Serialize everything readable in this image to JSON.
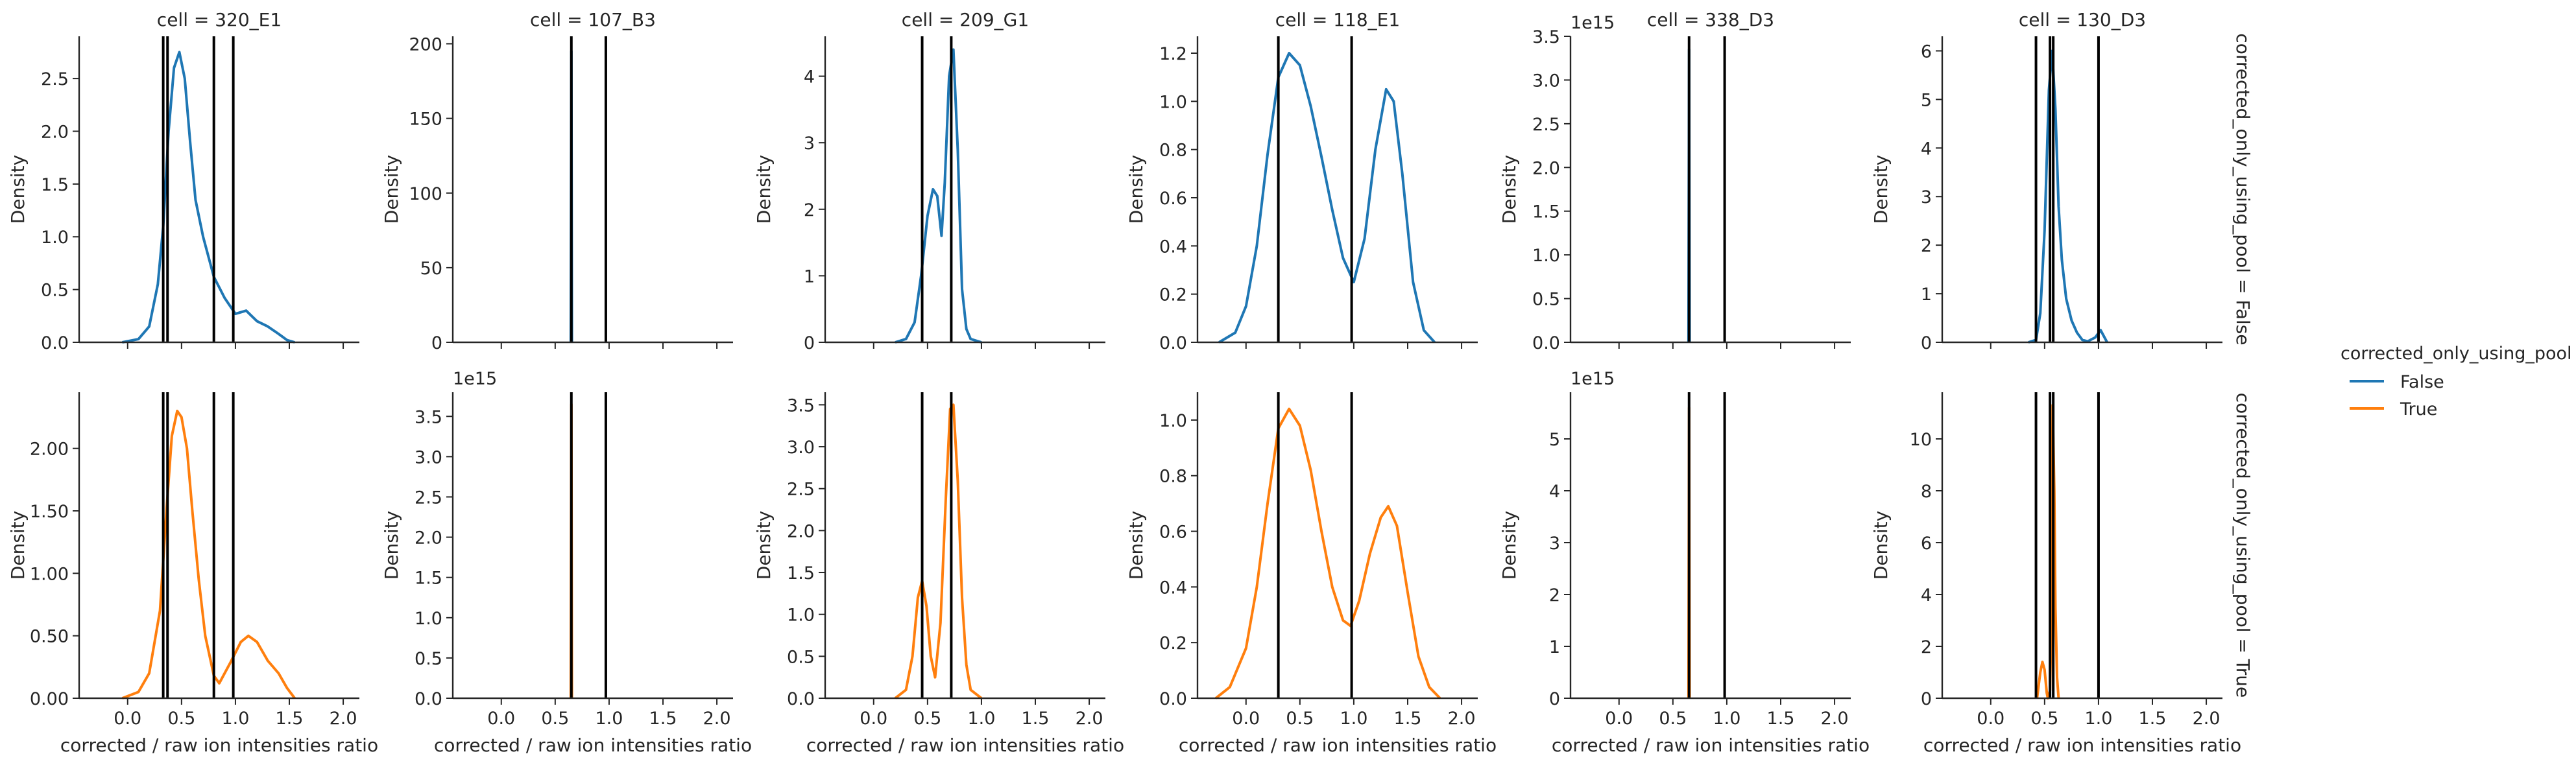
{
  "chart_data": {
    "type": "line",
    "row_facet_label": "corrected_only_using_pool",
    "col_facet_label": "cell",
    "xlabel": "corrected / raw ion intensities ratio",
    "ylabel": "Density",
    "x_ticks": [
      0.0,
      0.5,
      1.0,
      1.5,
      2.0
    ],
    "x_tick_labels": [
      "0.0",
      "0.5",
      "1.0",
      "1.5",
      "2.0"
    ],
    "xlim": [
      -0.45,
      2.15
    ],
    "columns": [
      "cell = 320_E1",
      "cell = 107_B3",
      "cell = 209_G1",
      "cell = 118_E1",
      "cell = 338_D3",
      "cell = 130_D3"
    ],
    "rows": [
      "corrected_only_using_pool = False",
      "corrected_only_using_pool = True"
    ],
    "legend": {
      "title": "corrected_only_using_pool",
      "position": "right",
      "entries": [
        {
          "label": "False",
          "color": "#1f77b4"
        },
        {
          "label": "True",
          "color": "#ff7f0e"
        }
      ]
    },
    "panels": [
      {
        "row": 0,
        "col": 0,
        "series": "False",
        "ylim": [
          0,
          2.9
        ],
        "yticks": [
          0,
          0.5,
          1.0,
          1.5,
          2.0,
          2.5
        ],
        "ytick_labels": [
          "0.0",
          "0.5",
          "1.0",
          "1.5",
          "2.0",
          "2.5"
        ],
        "offset_label": "",
        "vlines": [
          0.33,
          0.37,
          0.8,
          0.98
        ],
        "curve": {
          "x": [
            -0.05,
            0.1,
            0.2,
            0.28,
            0.33,
            0.38,
            0.43,
            0.48,
            0.53,
            0.58,
            0.63,
            0.7,
            0.8,
            0.9,
            1.0,
            1.1,
            1.2,
            1.3,
            1.4,
            1.48,
            1.55
          ],
          "y": [
            0,
            0.03,
            0.15,
            0.55,
            1.1,
            2.0,
            2.6,
            2.75,
            2.5,
            1.9,
            1.35,
            1.0,
            0.62,
            0.42,
            0.27,
            0.3,
            0.2,
            0.15,
            0.08,
            0.02,
            0
          ]
        }
      },
      {
        "row": 0,
        "col": 1,
        "series": "False",
        "ylim": [
          0,
          205
        ],
        "yticks": [
          0,
          50,
          100,
          150,
          200
        ],
        "ytick_labels": [
          "0",
          "50",
          "100",
          "150",
          "200"
        ],
        "offset_label": "",
        "vlines": [
          0.65,
          0.97
        ],
        "curve": {
          "x": [
            0.645,
            0.65,
            0.655
          ],
          "y": [
            0,
            195,
            0
          ]
        }
      },
      {
        "row": 0,
        "col": 2,
        "series": "False",
        "ylim": [
          0,
          4.6
        ],
        "yticks": [
          0,
          1,
          2,
          3,
          4
        ],
        "ytick_labels": [
          "0",
          "1",
          "2",
          "3",
          "4"
        ],
        "offset_label": "",
        "vlines": [
          0.45,
          0.72
        ],
        "curve": {
          "x": [
            0.2,
            0.3,
            0.38,
            0.44,
            0.5,
            0.55,
            0.59,
            0.63,
            0.66,
            0.7,
            0.74,
            0.78,
            0.82,
            0.86,
            0.9,
            1.0
          ],
          "y": [
            0,
            0.05,
            0.3,
            1.0,
            1.9,
            2.3,
            2.2,
            1.6,
            2.4,
            4.0,
            4.4,
            2.9,
            0.8,
            0.2,
            0.05,
            0
          ]
        }
      },
      {
        "row": 0,
        "col": 3,
        "series": "False",
        "ylim": [
          0,
          1.27
        ],
        "yticks": [
          0,
          0.2,
          0.4,
          0.6,
          0.8,
          1.0,
          1.2
        ],
        "ytick_labels": [
          "0.0",
          "0.2",
          "0.4",
          "0.6",
          "0.8",
          "1.0",
          "1.2"
        ],
        "offset_label": "",
        "vlines": [
          0.3,
          0.98
        ],
        "curve": {
          "x": [
            -0.25,
            -0.1,
            0.0,
            0.1,
            0.2,
            0.3,
            0.4,
            0.5,
            0.6,
            0.7,
            0.8,
            0.9,
            1.0,
            1.1,
            1.2,
            1.3,
            1.37,
            1.45,
            1.55,
            1.65,
            1.75
          ],
          "y": [
            0,
            0.04,
            0.15,
            0.4,
            0.78,
            1.1,
            1.2,
            1.15,
            0.98,
            0.77,
            0.55,
            0.35,
            0.25,
            0.43,
            0.8,
            1.05,
            1.0,
            0.7,
            0.25,
            0.05,
            0
          ]
        }
      },
      {
        "row": 0,
        "col": 4,
        "series": "False",
        "ylim": [
          0,
          3.5
        ],
        "yticks": [
          0,
          0.5,
          1.0,
          1.5,
          2.0,
          2.5,
          3.0,
          3.5
        ],
        "ytick_labels": [
          "0.0",
          "0.5",
          "1.0",
          "1.5",
          "2.0",
          "2.5",
          "3.0",
          "3.5"
        ],
        "offset_label": "1e15",
        "vlines": [
          0.65,
          0.98
        ],
        "curve": {
          "x": [
            0.645,
            0.65,
            0.655
          ],
          "y": [
            0,
            3.35,
            0
          ]
        }
      },
      {
        "row": 0,
        "col": 5,
        "series": "False",
        "ylim": [
          0,
          6.3
        ],
        "yticks": [
          0,
          1,
          2,
          3,
          4,
          5,
          6
        ],
        "ytick_labels": [
          "0",
          "1",
          "2",
          "3",
          "4",
          "5",
          "6"
        ],
        "offset_label": "",
        "vlines": [
          0.42,
          0.55,
          0.58,
          1.0
        ],
        "curve": {
          "x": [
            0.35,
            0.42,
            0.46,
            0.5,
            0.54,
            0.57,
            0.6,
            0.63,
            0.66,
            0.7,
            0.75,
            0.8,
            0.85,
            0.9,
            0.97,
            1.02,
            1.08
          ],
          "y": [
            0,
            0.05,
            0.6,
            2.3,
            5.2,
            6.0,
            4.8,
            2.8,
            1.7,
            0.9,
            0.45,
            0.2,
            0.05,
            0.02,
            0.1,
            0.25,
            0
          ]
        }
      },
      {
        "row": 1,
        "col": 0,
        "series": "True",
        "ylim": [
          0,
          2.45
        ],
        "yticks": [
          0,
          0.5,
          1.0,
          1.5,
          2.0
        ],
        "ytick_labels": [
          "0.00",
          "0.50",
          "1.00",
          "1.50",
          "2.00"
        ],
        "offset_label": "",
        "vlines": [
          0.33,
          0.37,
          0.8,
          0.98
        ],
        "curve": {
          "x": [
            -0.05,
            0.1,
            0.2,
            0.3,
            0.36,
            0.41,
            0.46,
            0.5,
            0.55,
            0.6,
            0.66,
            0.72,
            0.8,
            0.85,
            0.95,
            1.05,
            1.12,
            1.2,
            1.3,
            1.4,
            1.48,
            1.55
          ],
          "y": [
            0,
            0.05,
            0.2,
            0.7,
            1.5,
            2.1,
            2.3,
            2.25,
            2.0,
            1.5,
            0.95,
            0.5,
            0.18,
            0.12,
            0.28,
            0.45,
            0.5,
            0.45,
            0.3,
            0.2,
            0.08,
            0
          ]
        }
      },
      {
        "row": 1,
        "col": 1,
        "series": "True",
        "ylim": [
          0,
          3.8
        ],
        "yticks": [
          0,
          0.5,
          1.0,
          1.5,
          2.0,
          2.5,
          3.0,
          3.5
        ],
        "ytick_labels": [
          "0.0",
          "0.5",
          "1.0",
          "1.5",
          "2.0",
          "2.5",
          "3.0",
          "3.5"
        ],
        "offset_label": "1e15",
        "vlines": [
          0.65,
          0.97
        ],
        "curve": {
          "x": [
            0.645,
            0.65,
            0.655
          ],
          "y": [
            0,
            3.65,
            0
          ]
        }
      },
      {
        "row": 1,
        "col": 2,
        "series": "True",
        "ylim": [
          0,
          3.65
        ],
        "yticks": [
          0,
          0.5,
          1.0,
          1.5,
          2.0,
          2.5,
          3.0,
          3.5
        ],
        "ytick_labels": [
          "0.0",
          "0.5",
          "1.0",
          "1.5",
          "2.0",
          "2.5",
          "3.0",
          "3.5"
        ],
        "offset_label": "",
        "vlines": [
          0.45,
          0.72
        ],
        "curve": {
          "x": [
            0.2,
            0.3,
            0.36,
            0.41,
            0.45,
            0.49,
            0.53,
            0.57,
            0.62,
            0.67,
            0.71,
            0.74,
            0.78,
            0.82,
            0.86,
            0.9,
            1.0
          ],
          "y": [
            0,
            0.1,
            0.5,
            1.2,
            1.4,
            1.1,
            0.5,
            0.25,
            0.9,
            2.4,
            3.45,
            3.5,
            2.6,
            1.2,
            0.4,
            0.1,
            0
          ]
        }
      },
      {
        "row": 1,
        "col": 3,
        "series": "True",
        "ylim": [
          0,
          1.1
        ],
        "yticks": [
          0,
          0.2,
          0.4,
          0.6,
          0.8,
          1.0
        ],
        "ytick_labels": [
          "0.0",
          "0.2",
          "0.4",
          "0.6",
          "0.8",
          "1.0"
        ],
        "offset_label": "",
        "vlines": [
          0.3,
          0.98
        ],
        "curve": {
          "x": [
            -0.28,
            -0.15,
            0.0,
            0.1,
            0.2,
            0.3,
            0.4,
            0.5,
            0.6,
            0.7,
            0.8,
            0.9,
            0.97,
            1.05,
            1.15,
            1.25,
            1.32,
            1.4,
            1.5,
            1.6,
            1.7,
            1.8
          ],
          "y": [
            0,
            0.04,
            0.18,
            0.4,
            0.7,
            0.97,
            1.04,
            0.98,
            0.82,
            0.6,
            0.4,
            0.28,
            0.26,
            0.35,
            0.52,
            0.65,
            0.69,
            0.62,
            0.38,
            0.15,
            0.04,
            0
          ]
        }
      },
      {
        "row": 1,
        "col": 4,
        "series": "True",
        "ylim": [
          0,
          5.9
        ],
        "yticks": [
          0,
          1,
          2,
          3,
          4,
          5
        ],
        "ytick_labels": [
          "0",
          "1",
          "2",
          "3",
          "4",
          "5"
        ],
        "offset_label": "1e15",
        "vlines": [
          0.65,
          0.98
        ],
        "curve": {
          "x": [
            0.645,
            0.65,
            0.655
          ],
          "y": [
            0,
            5.6,
            0
          ]
        }
      },
      {
        "row": 1,
        "col": 5,
        "series": "True",
        "ylim": [
          0,
          11.8
        ],
        "yticks": [
          0,
          2,
          4,
          6,
          8,
          10
        ],
        "ytick_labels": [
          "0",
          "2",
          "4",
          "6",
          "8",
          "10"
        ],
        "offset_label": "",
        "vlines": [
          0.42,
          0.55,
          0.58,
          1.0
        ],
        "curve": {
          "x": [
            0.43,
            0.46,
            0.48,
            0.5,
            0.52,
            0.53,
            0.55,
            0.56,
            0.575,
            0.59,
            0.6,
            0.615,
            0.63
          ],
          "y": [
            0,
            1.0,
            1.4,
            1.1,
            0.2,
            0,
            0.3,
            2.5,
            11.3,
            8.0,
            3.5,
            0.8,
            0
          ]
        }
      }
    ]
  }
}
